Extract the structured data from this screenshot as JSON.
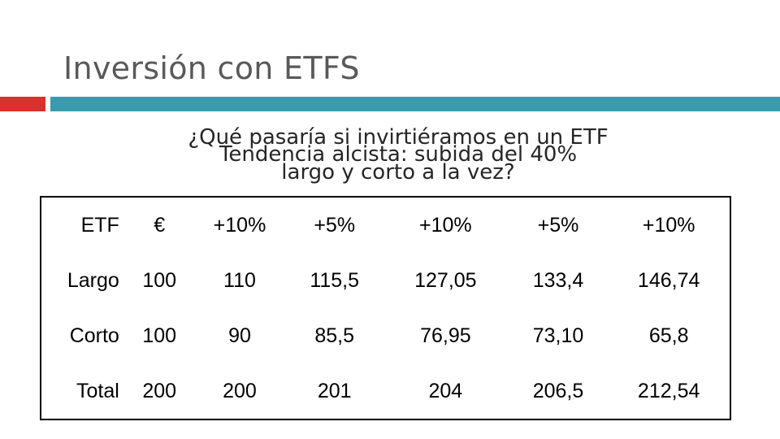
{
  "slide": {
    "title": "Inversión con ETFS",
    "overlay_lines": [
      "¿Qué pasaría si invirtiéramos en un ETF",
      "Tendencia alcista: subida del 40%",
      "largo y corto a la vez?"
    ]
  },
  "colors": {
    "accent_red": "#d9312b",
    "accent_teal": "#3c9aaf",
    "title_gray": "#595959"
  },
  "table": {
    "header": [
      "ETF",
      "€",
      "+10%",
      "+5%",
      "+10%",
      "+5%",
      "+10%"
    ],
    "rows": [
      [
        "Largo",
        "100",
        "110",
        "115,5",
        "127,05",
        "133,4",
        "146,74"
      ],
      [
        "Corto",
        "100",
        "90",
        "85,5",
        "76,95",
        "73,10",
        "65,8"
      ],
      [
        "Total",
        "200",
        "200",
        "201",
        "204",
        "206,5",
        "212,54"
      ]
    ]
  }
}
